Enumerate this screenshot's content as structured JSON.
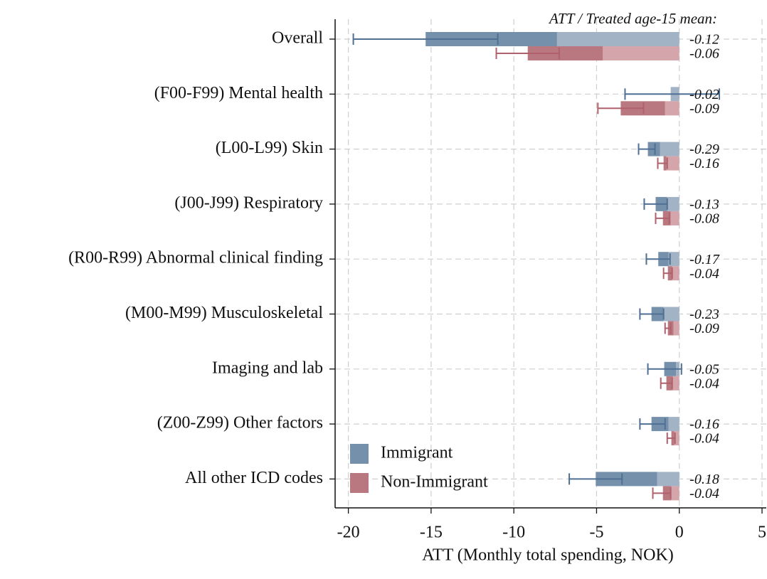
{
  "chart_data": {
    "type": "bar",
    "orientation": "horizontal",
    "annotation": "ATT / Treated age-15 mean:",
    "x_label": "ATT (Monthly total spending, NOK)",
    "categories": [
      "Overall",
      "(F00-F99) Mental health",
      "(L00-L99) Skin",
      "(J00-J99) Respiratory",
      "(R00-R99) Abnormal clinical finding",
      "(M00-M99) Musculoskeletal",
      "Imaging and lab",
      "(Z00-Z99) Other factors",
      "All other ICD codes"
    ],
    "series": [
      {
        "name": "Immigrant",
        "color": "#7590ab",
        "light_color": "#a3b3c6",
        "error_color": "#4f6f93",
        "values": [
          -15.33,
          -0.52,
          -1.9,
          -1.43,
          -1.27,
          -1.68,
          -0.91,
          -1.68,
          -5.05
        ],
        "values_light": [
          -7.39,
          -0.52,
          -1.17,
          -0.73,
          -0.65,
          -0.95,
          -0.2,
          -0.65,
          -1.34
        ],
        "ci_low": [
          -19.7,
          -3.28,
          -2.46,
          -2.12,
          -1.99,
          -2.38,
          -1.9,
          -2.38,
          -6.65
        ],
        "ci_high": [
          -10.97,
          2.42,
          -1.47,
          -0.73,
          -0.56,
          -0.95,
          0.13,
          -0.86,
          -3.46
        ],
        "ratios": [
          -0.12,
          -0.02,
          -0.29,
          -0.13,
          -0.17,
          -0.23,
          -0.05,
          -0.16,
          -0.18
        ]
      },
      {
        "name": "Non-Immigrant",
        "color": "#b9787f",
        "light_color": "#d4a5aa",
        "error_color": "#b0616b",
        "values": [
          -9.16,
          -3.54,
          -0.95,
          -0.99,
          -0.69,
          -0.69,
          -0.78,
          -0.48,
          -0.99
        ],
        "values_light": [
          -4.62,
          -0.86,
          -0.78,
          -0.52,
          -0.43,
          -0.35,
          -0.39,
          -0.3,
          -0.48
        ],
        "ci_low": [
          -11.06,
          -4.92,
          -1.3,
          -1.43,
          -0.95,
          -0.86,
          -1.12,
          -0.73,
          -1.6
        ],
        "ci_high": [
          -7.26,
          -2.16,
          -0.73,
          -0.6,
          -0.43,
          -0.52,
          -0.43,
          -0.26,
          -0.52
        ],
        "ratios": [
          -0.06,
          -0.09,
          -0.16,
          -0.08,
          -0.04,
          -0.09,
          -0.04,
          -0.04,
          -0.04
        ]
      }
    ],
    "xlim": [
      -20.8,
      5.3
    ],
    "xticks": [
      -20,
      -15,
      -10,
      -5,
      0,
      5
    ],
    "grid": true,
    "legend": "lower left"
  }
}
